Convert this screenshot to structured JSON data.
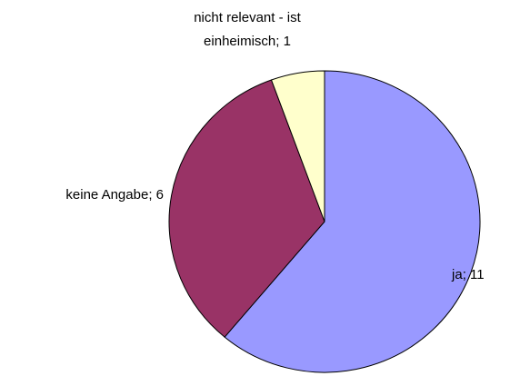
{
  "chart_data": {
    "type": "pie",
    "categories": [
      "ja",
      "keine Angabe",
      "nicht relevant - ist einheimisch"
    ],
    "values": [
      11,
      6,
      1
    ],
    "colors": [
      "#9999ff",
      "#993366",
      "#ffffcc"
    ],
    "label_separator": "; "
  }
}
